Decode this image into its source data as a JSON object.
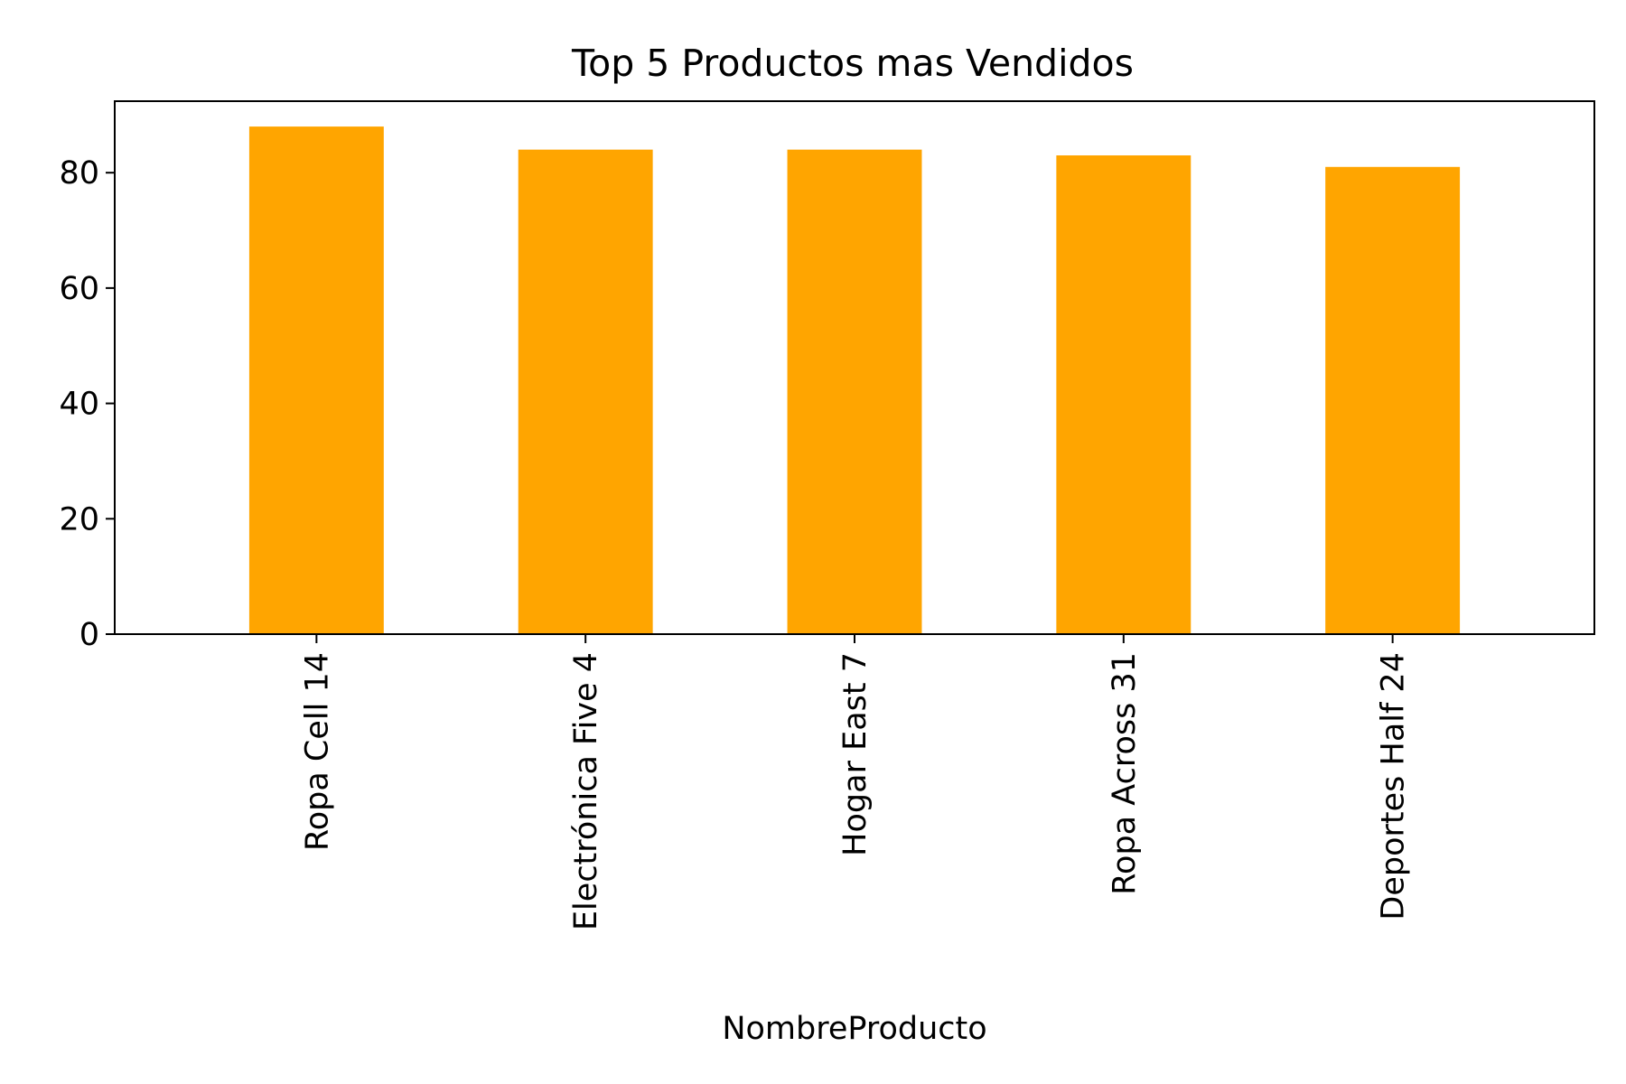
{
  "chart_data": {
    "type": "bar",
    "title": "Top 5 Productos mas Vendidos",
    "xlabel": "NombreProducto",
    "ylabel": "",
    "categories": [
      "Ropa Cell 14",
      "Electrónica Five 4",
      "Hogar East 7",
      "Ropa Across 31",
      "Deportes Half 24"
    ],
    "values": [
      88,
      84,
      84,
      83,
      81
    ],
    "ylim": [
      0,
      92.4
    ],
    "yticks": [
      0,
      20,
      40,
      60,
      80
    ],
    "bar_color": "#FFA500",
    "grid": false,
    "legend": "none",
    "xtick_rotation": "vertical"
  }
}
